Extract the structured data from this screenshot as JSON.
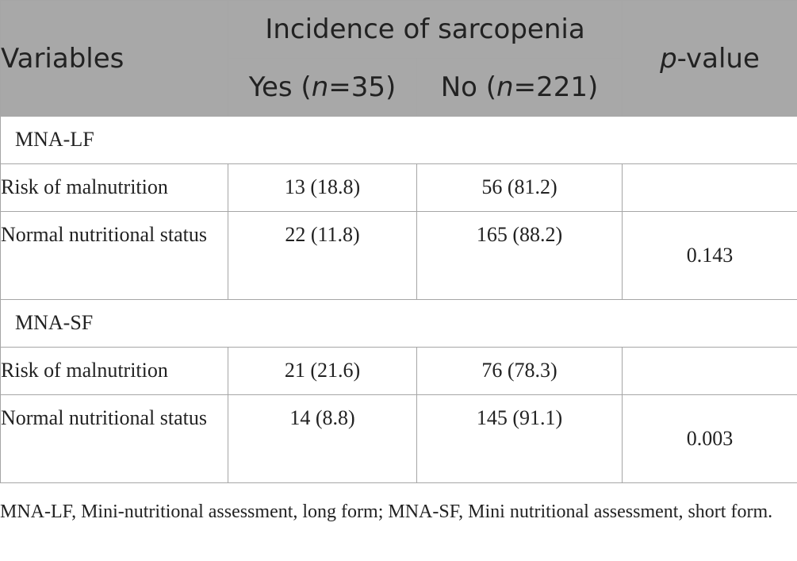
{
  "header": {
    "variables": "Variables",
    "group": "Incidence of sarcopenia",
    "yes_prefix": "Yes (",
    "yes_n": "n",
    "yes_suffix": "=35)",
    "no_prefix": "No (",
    "no_n": "n",
    "no_suffix": "=221)",
    "p_italic": "p",
    "p_suffix": "-value"
  },
  "sections": [
    {
      "name": "MNA-LF",
      "rows": [
        {
          "label": "Risk of malnutrition",
          "yes": "13 (18.8)",
          "no": "56 (81.2)"
        },
        {
          "label": "Normal nutritional status",
          "yes": "22 (11.8)",
          "no": "165 (88.2)"
        }
      ],
      "p_value": "0.143"
    },
    {
      "name": "MNA-SF",
      "rows": [
        {
          "label": "Risk of malnutrition",
          "yes": "21 (21.6)",
          "no": "76 (78.3)"
        },
        {
          "label": "Normal nutritional status",
          "yes": "14 (8.8)",
          "no": "145 (91.1)"
        }
      ],
      "p_value": "0.003"
    }
  ],
  "footnote": "MNA-LF, Mini-nutritional assessment, long form; MNA-SF, Mini nutritional assessment, short form.",
  "colors": {
    "header_bg": "#a8a8a8",
    "header_text": "#ffffff",
    "border": "#a6a6a6",
    "body_text": "#222222"
  }
}
